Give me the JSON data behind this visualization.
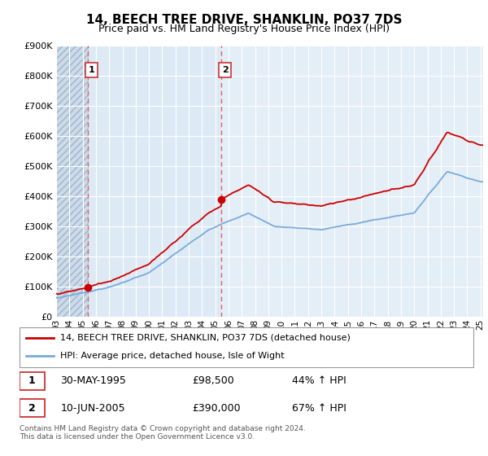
{
  "title": "14, BEECH TREE DRIVE, SHANKLIN, PO37 7DS",
  "subtitle": "Price paid vs. HM Land Registry's House Price Index (HPI)",
  "sale1_date": "30-MAY-1995",
  "sale1_price": 98500,
  "sale1_pct": "44% ↑ HPI",
  "sale2_date": "10-JUN-2005",
  "sale2_price": 390000,
  "sale2_pct": "67% ↑ HPI",
  "sale1_year": 1995.38,
  "sale2_year": 2005.44,
  "legend_line1": "14, BEECH TREE DRIVE, SHANKLIN, PO37 7DS (detached house)",
  "legend_line2": "HPI: Average price, detached house, Isle of Wight",
  "footnote": "Contains HM Land Registry data © Crown copyright and database right 2024.\nThis data is licensed under the Open Government Licence v3.0.",
  "line_color_red": "#cc0000",
  "line_color_blue": "#7aabdb",
  "dashed_line_color": "#e06060",
  "ylim_max": 900000,
  "xlim_start": 1993.0,
  "xlim_end": 2025.2,
  "bg_main": "#dce8f5",
  "bg_hatch_region": "#ccdae8",
  "hatch_edge_color": "#aabccc",
  "grid_color": "#ffffff",
  "title_fontsize": 11,
  "subtitle_fontsize": 9
}
